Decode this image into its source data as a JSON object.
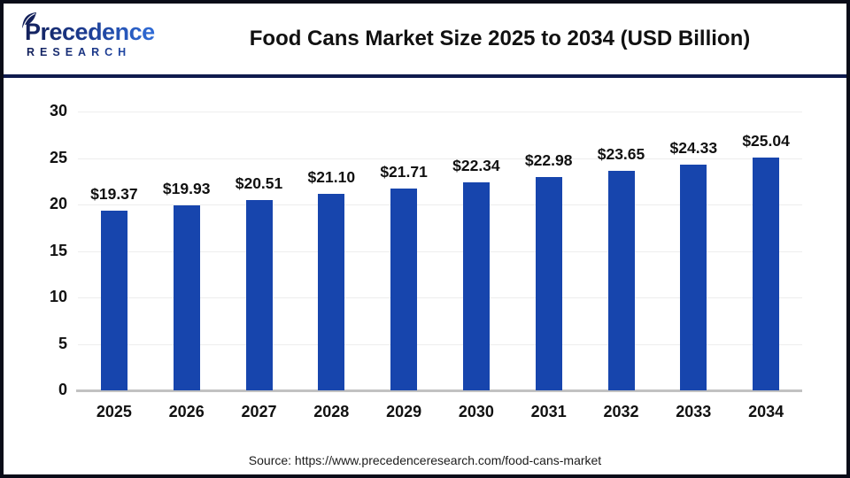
{
  "header": {
    "logo": {
      "line1": "Precedence",
      "line2": "RESEARCH"
    },
    "title": "Food Cans Market Size 2025 to 2034 (USD Billion)"
  },
  "chart_data": {
    "type": "bar",
    "title": "Food Cans Market Size 2025 to 2034 (USD Billion)",
    "categories": [
      "2025",
      "2026",
      "2027",
      "2028",
      "2029",
      "2030",
      "2031",
      "2032",
      "2033",
      "2034"
    ],
    "values": [
      19.37,
      19.93,
      20.51,
      21.1,
      21.71,
      22.34,
      22.98,
      23.65,
      24.33,
      25.04
    ],
    "value_labels": [
      "$19.37",
      "$19.93",
      "$20.51",
      "$21.10",
      "$21.71",
      "$22.34",
      "$22.98",
      "$23.65",
      "$24.33",
      "$25.04"
    ],
    "xlabel": "",
    "ylabel": "",
    "ylim": [
      0,
      30
    ],
    "yticks": [
      0,
      5,
      10,
      15,
      20,
      25,
      30
    ],
    "grid": true,
    "legend_position": "none",
    "bar_color": "#1745ad",
    "gridline_color": "#ededed",
    "axis_line_color": "#c2c2c2"
  },
  "footer": {
    "source": "Source: https://www.precedenceresearch.com/food-cans-market"
  },
  "colors": {
    "brand_navy": "#13205a",
    "brand_blue": "#2f6cd8",
    "divider_navy": "#0f1a4d",
    "frame_border": "#0a0c18",
    "text": "#111111"
  }
}
